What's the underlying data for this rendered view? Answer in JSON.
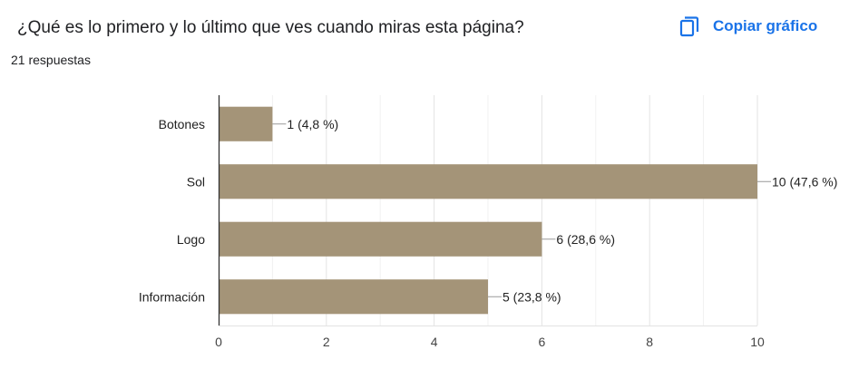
{
  "header": {
    "question": "¿Qué es lo primero y lo último que ves cuando miras esta página?",
    "responses": "21 respuestas",
    "copy_label": "Copiar gráfico",
    "copy_icon": "copy-icon"
  },
  "colors": {
    "bar": "#a49478",
    "axis": "#333333",
    "grid": "#ebebeb",
    "accent": "#1a73e8"
  },
  "chart_data": {
    "type": "bar",
    "orientation": "horizontal",
    "title": "",
    "xlabel": "",
    "ylabel": "",
    "categories": [
      "Botones",
      "Sol",
      "Logo",
      "Información"
    ],
    "values": [
      1,
      10,
      6,
      5
    ],
    "data_labels": [
      "1 (4,8 %)",
      "10 (47,6 %)",
      "6 (28,6 %)",
      "5 (23,8 %)"
    ],
    "xlim": [
      0,
      10
    ],
    "ticks": [
      0,
      2,
      4,
      6,
      8,
      10
    ],
    "grid": true,
    "legend": "none"
  }
}
